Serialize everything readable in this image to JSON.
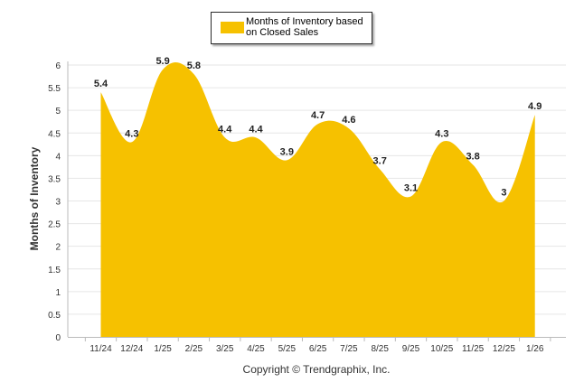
{
  "chart_data": {
    "type": "area",
    "title": "",
    "xlabel": "",
    "ylabel": "Months of Inventory",
    "categories": [
      "11/24",
      "12/24",
      "1/25",
      "2/25",
      "3/25",
      "4/25",
      "5/25",
      "6/25",
      "7/25",
      "8/25",
      "9/25",
      "10/25",
      "11/25",
      "12/25",
      "1/26"
    ],
    "series": [
      {
        "name": "Months of Inventory based on Closed Sales",
        "values": [
          5.4,
          4.3,
          5.9,
          5.8,
          4.4,
          4.4,
          3.9,
          4.7,
          4.6,
          3.7,
          3.1,
          4.3,
          3.8,
          3.0,
          4.9
        ],
        "labels": [
          "5.4",
          "4.3",
          "5.9",
          "5.8",
          "4.4",
          "4.4",
          "3.9",
          "4.7",
          "4.6",
          "3.7",
          "3.1",
          "4.3",
          "3.8",
          "3",
          "4.9"
        ],
        "color": "#f6c100"
      }
    ],
    "ylim": [
      0,
      6
    ],
    "yticks": [
      "0",
      "0.5",
      "1",
      "1.5",
      "2",
      "2.5",
      "3",
      "3.5",
      "4",
      "4.5",
      "5",
      "5.5",
      "6"
    ],
    "grid": true,
    "legend_position": "top-center"
  },
  "legend": {
    "label": "Months of Inventory based on Closed Sales",
    "color": "#f6c100"
  },
  "footer": {
    "copyright": "Copyright © Trendgraphix, Inc."
  }
}
